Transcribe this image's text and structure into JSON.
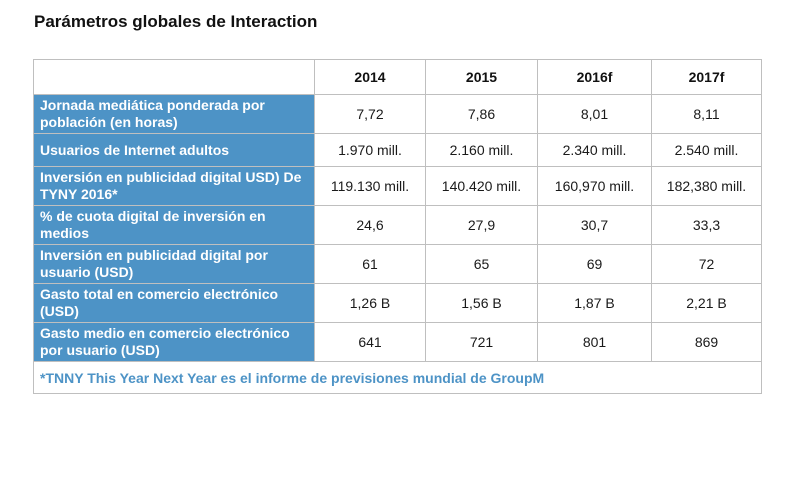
{
  "title": "Parámetros globales de Interaction",
  "table": {
    "columns": [
      "2014",
      "2015",
      "2016f",
      "2017f"
    ],
    "rows": [
      {
        "label": "Jornada mediática ponderada por población (en horas)",
        "values": [
          "7,72",
          "7,86",
          "8,01",
          "8,11"
        ]
      },
      {
        "label": "Usuarios de Internet adultos",
        "values": [
          "1.970 mill.",
          "2.160 mill.",
          "2.340 mill.",
          "2.540 mill."
        ]
      },
      {
        "label": "Inversión en publicidad digital USD) De TYNY 2016*",
        "values": [
          "119.130 mill.",
          "140.420 mill.",
          "160,970 mill.",
          "182,380 mill."
        ]
      },
      {
        "label": "% de cuota digital de inversión en medios",
        "values": [
          "24,6",
          "27,9",
          "30,7",
          "33,3"
        ]
      },
      {
        "label": "Inversión en publicidad digital por usuario (USD)",
        "values": [
          "61",
          "65",
          "69",
          "72"
        ]
      },
      {
        "label": "Gasto total en comercio electrónico (USD)",
        "values": [
          "1,26 B",
          "1,56 B",
          "1,87 B",
          "2,21 B"
        ]
      },
      {
        "label": "Gasto medio en comercio electrónico por usuario (USD)",
        "values": [
          "641",
          "721",
          "801",
          "869"
        ]
      }
    ],
    "footnote": "*TNNY This Year Next Year es el informe de previsiones mundial de GroupM"
  },
  "colors": {
    "label_bg": "#4d93c6",
    "label_text": "#ffffff",
    "footnote_text": "#4d93c6",
    "border": "#bfbfbf"
  }
}
